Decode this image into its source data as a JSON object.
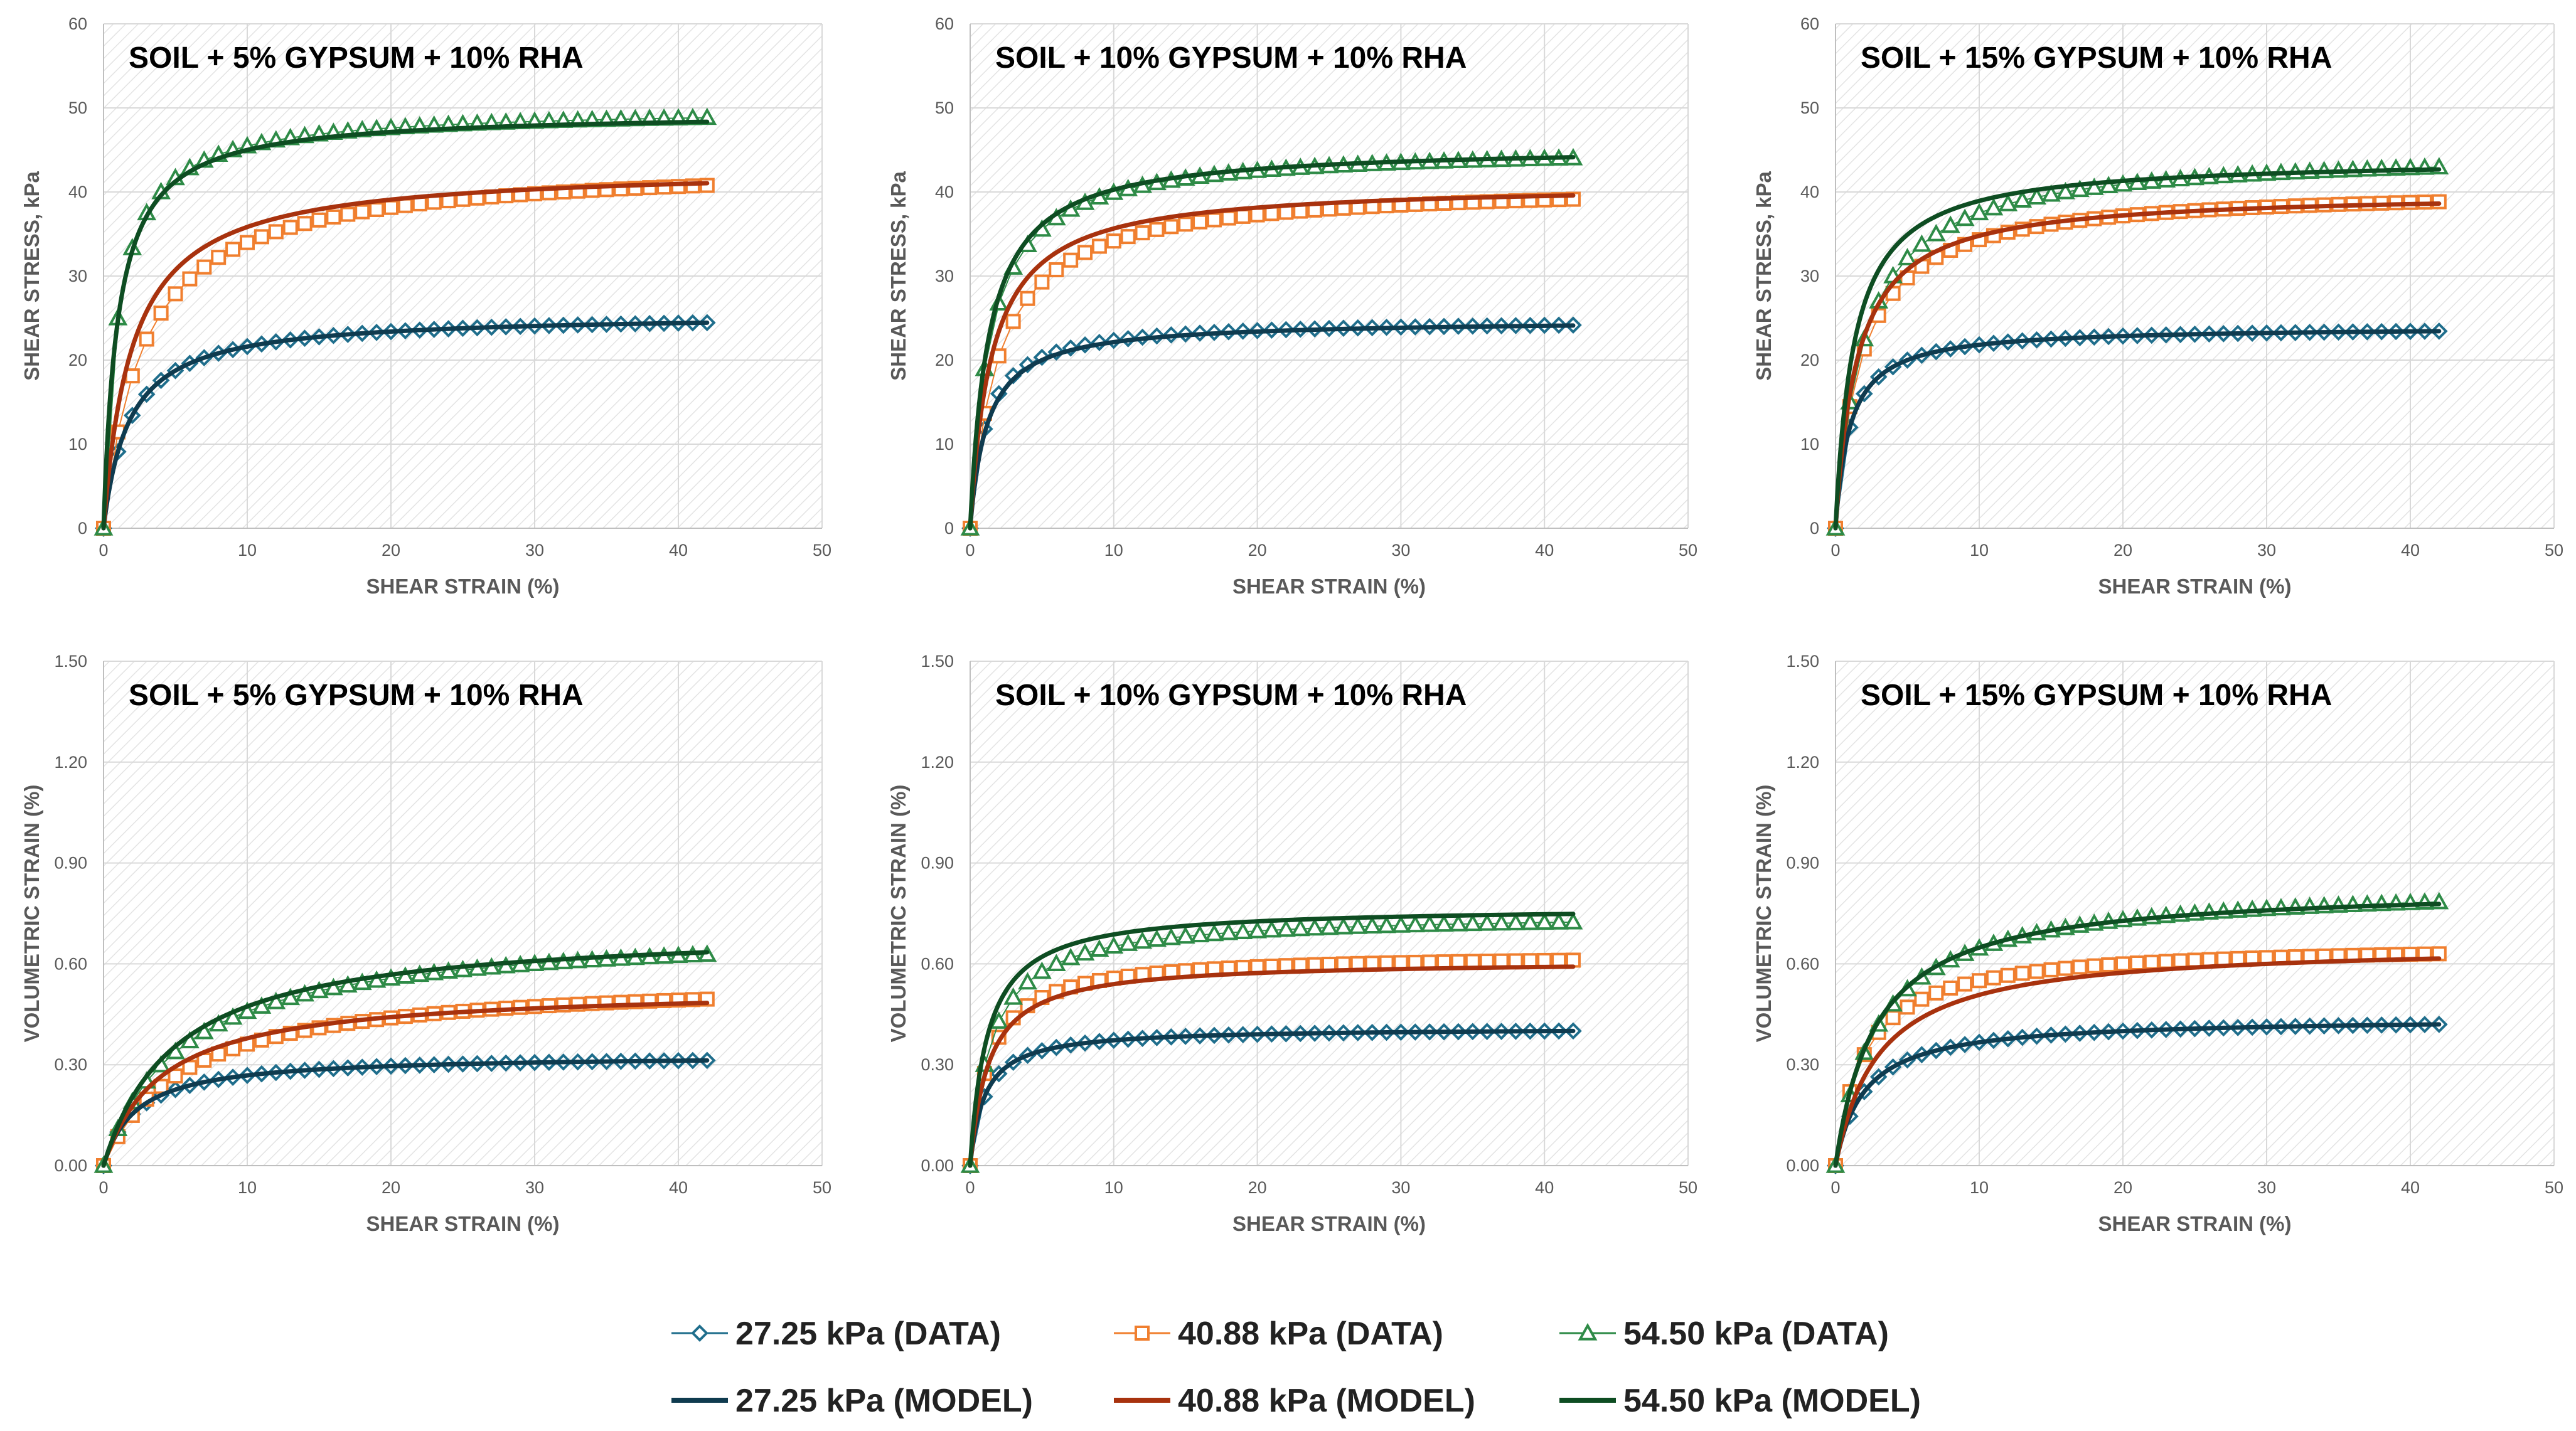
{
  "colors": {
    "d27": "#1F6E8C",
    "m27": "#0F3B4F",
    "d40": "#F07F2F",
    "m40": "#A8320E",
    "d54": "#2E8B47",
    "m54": "#0E4D22",
    "grid": "#D9D9D9",
    "hatch": "#E3E3E3"
  },
  "legend": {
    "items": [
      {
        "label": "27.25 kPa (DATA)",
        "kind": "data",
        "marker": "diamond",
        "series": "s27"
      },
      {
        "label": "40.88 kPa (DATA)",
        "kind": "data",
        "marker": "square",
        "series": "s40"
      },
      {
        "label": "54.50 kPa (DATA)",
        "kind": "data",
        "marker": "triangle",
        "series": "s54"
      },
      {
        "label": "27.25 kPa (MODEL)",
        "kind": "model",
        "series": "s27"
      },
      {
        "label": "40.88 kPa (MODEL)",
        "kind": "model",
        "series": "s40"
      },
      {
        "label": "54.50 kPa (MODEL)",
        "kind": "model",
        "series": "s54"
      }
    ]
  },
  "chart_data": [
    {
      "type": "line",
      "title": "SOIL + 5% GYPSUM + 10% RHA",
      "xlabel": "SHEAR STRAIN (%)",
      "ylabel": "SHEAR STRESS, kPa",
      "xlim": [
        0,
        50
      ],
      "ylim": [
        0,
        60
      ],
      "xticks": [
        "0",
        "10",
        "20",
        "30",
        "40",
        "50"
      ],
      "yticks": [
        "0",
        "10",
        "20",
        "30",
        "40",
        "50",
        "60"
      ],
      "series": [
        {
          "name": "27.25 kPa (DATA)",
          "key": "s27",
          "kind": "data",
          "asymptote": 25.5,
          "half_strain": 1.8
        },
        {
          "name": "40.88 kPa (DATA)",
          "key": "s40",
          "kind": "data",
          "asymptote": 43.5,
          "half_strain": 2.8
        },
        {
          "name": "54.50 kPa (DATA)",
          "key": "s54",
          "kind": "data",
          "asymptote": 50,
          "half_strain": 1.0
        },
        {
          "name": "27.25 kPa (MODEL)",
          "key": "s27",
          "kind": "model",
          "asymptote": 25.5,
          "half_strain": 1.8
        },
        {
          "name": "40.88 kPa (MODEL)",
          "key": "s40",
          "kind": "model",
          "asymptote": 43,
          "half_strain": 2.0
        },
        {
          "name": "54.50 kPa (MODEL)",
          "key": "s54",
          "kind": "model",
          "asymptote": 49.5,
          "half_strain": 1.0
        }
      ]
    },
    {
      "type": "line",
      "title": "SOIL + 10% GYPSUM + 10% RHA",
      "xlabel": "SHEAR STRAIN (%)",
      "ylabel": "SHEAR STRESS, kPa",
      "xlim": [
        0,
        50
      ],
      "ylim": [
        0,
        60
      ],
      "xticks": [
        "0",
        "10",
        "20",
        "30",
        "40",
        "50"
      ],
      "yticks": [
        "0",
        "10",
        "20",
        "30",
        "40",
        "50",
        "60"
      ],
      "series": [
        {
          "name": "27.25 kPa (DATA)",
          "key": "s27",
          "kind": "data",
          "asymptote": 24.8,
          "half_strain": 1.1
        },
        {
          "name": "40.88 kPa (DATA)",
          "key": "s40",
          "kind": "data",
          "asymptote": 41,
          "half_strain": 2.0
        },
        {
          "name": "54.50 kPa (DATA)",
          "key": "s54",
          "kind": "data",
          "asymptote": 45.5,
          "half_strain": 1.4
        },
        {
          "name": "27.25 kPa (MODEL)",
          "key": "s27",
          "kind": "model",
          "asymptote": 24.8,
          "half_strain": 1.2
        },
        {
          "name": "40.88 kPa (MODEL)",
          "key": "s40",
          "kind": "model",
          "asymptote": 41,
          "half_strain": 1.5
        },
        {
          "name": "54.50 kPa (MODEL)",
          "key": "s54",
          "kind": "model",
          "asymptote": 45.5,
          "half_strain": 1.3
        }
      ]
    },
    {
      "type": "line",
      "title": "SOIL + 15% GYPSUM + 10% RHA",
      "xlabel": "SHEAR STRAIN (%)",
      "ylabel": "SHEAR STRESS, kPa",
      "xlim": [
        0,
        50
      ],
      "ylim": [
        0,
        60
      ],
      "xticks": [
        "0",
        "10",
        "20",
        "30",
        "40",
        "50"
      ],
      "yticks": [
        "0",
        "10",
        "20",
        "30",
        "40",
        "50",
        "60"
      ],
      "series": [
        {
          "name": "27.25 kPa (DATA)",
          "key": "s27",
          "kind": "data",
          "asymptote": 24,
          "half_strain": 1.0
        },
        {
          "name": "40.88 kPa (DATA)",
          "key": "s40",
          "kind": "data",
          "asymptote": 40.5,
          "half_strain": 1.8
        },
        {
          "name": "54.50 kPa (DATA)",
          "key": "s54",
          "kind": "data",
          "asymptote": 45,
          "half_strain": 2.0
        },
        {
          "name": "27.25 kPa (MODEL)",
          "key": "s27",
          "kind": "model",
          "asymptote": 24,
          "half_strain": 1.0
        },
        {
          "name": "40.88 kPa (MODEL)",
          "key": "s40",
          "kind": "model",
          "asymptote": 40,
          "half_strain": 1.5
        },
        {
          "name": "54.50 kPa (MODEL)",
          "key": "s54",
          "kind": "model",
          "asymptote": 44,
          "half_strain": 1.3
        }
      ]
    },
    {
      "type": "line",
      "title": "SOIL + 5% GYPSUM + 10% RHA",
      "xlabel": "SHEAR STRAIN (%)",
      "ylabel": "VOLUMETRIC STRAIN (%)",
      "xlim": [
        0,
        50
      ],
      "ylim": [
        0,
        1.5
      ],
      "xticks": [
        "0",
        "10",
        "20",
        "30",
        "40",
        "50"
      ],
      "yticks": [
        "0.00",
        "0.30",
        "0.60",
        "0.90",
        "1.20",
        "1.50"
      ],
      "series": [
        {
          "name": "27.25 kPa (DATA)",
          "key": "s27",
          "kind": "data",
          "asymptote": 0.33,
          "half_strain": 2.3
        },
        {
          "name": "40.88 kPa (DATA)",
          "key": "s40",
          "kind": "data",
          "asymptote": 0.56,
          "half_strain": 5.5
        },
        {
          "name": "54.50 kPa (DATA)",
          "key": "s54",
          "kind": "data",
          "asymptote": 0.71,
          "half_strain": 5.5
        },
        {
          "name": "27.25 kPa (MODEL)",
          "key": "s27",
          "kind": "model",
          "asymptote": 0.33,
          "half_strain": 2.3
        },
        {
          "name": "40.88 kPa (MODEL)",
          "key": "s40",
          "kind": "model",
          "asymptote": 0.53,
          "half_strain": 4.0
        },
        {
          "name": "54.50 kPa (MODEL)",
          "key": "s54",
          "kind": "model",
          "asymptote": 0.71,
          "half_strain": 5.0
        }
      ]
    },
    {
      "type": "line",
      "title": "SOIL + 10% GYPSUM + 10% RHA",
      "xlabel": "SHEAR STRAIN (%)",
      "ylabel": "VOLUMETRIC STRAIN (%)",
      "xlim": [
        0,
        50
      ],
      "ylim": [
        0,
        1.5
      ],
      "xticks": [
        "0",
        "10",
        "20",
        "30",
        "40",
        "50"
      ],
      "yticks": [
        "0.00",
        "0.30",
        "0.60",
        "0.90",
        "1.20",
        "1.50"
      ],
      "series": [
        {
          "name": "27.25 kPa (DATA)",
          "key": "s27",
          "kind": "data",
          "asymptote": 0.41,
          "half_strain": 1.0
        },
        {
          "name": "40.88 kPa (DATA)",
          "key": "s40",
          "kind": "data",
          "asymptote": 0.63,
          "half_strain": 1.3
        },
        {
          "name": "54.50 kPa (DATA)",
          "key": "s54",
          "kind": "data",
          "asymptote": 0.75,
          "half_strain": 1.5
        },
        {
          "name": "27.25 kPa (MODEL)",
          "key": "s27",
          "kind": "model",
          "asymptote": 0.41,
          "half_strain": 1.0
        },
        {
          "name": "40.88 kPa (MODEL)",
          "key": "s40",
          "kind": "model",
          "asymptote": 0.61,
          "half_strain": 1.3
        },
        {
          "name": "54.50 kPa (MODEL)",
          "key": "s54",
          "kind": "model",
          "asymptote": 0.77,
          "half_strain": 1.2
        }
      ]
    },
    {
      "type": "line",
      "title": "SOIL + 15% GYPSUM + 10% RHA",
      "xlabel": "SHEAR STRAIN (%)",
      "ylabel": "VOLUMETRIC STRAIN (%)",
      "xlim": [
        0,
        50
      ],
      "ylim": [
        0,
        1.5
      ],
      "xticks": [
        "0",
        "10",
        "20",
        "30",
        "40",
        "50"
      ],
      "yticks": [
        "0.00",
        "0.30",
        "0.60",
        "0.90",
        "1.20",
        "1.50"
      ],
      "series": [
        {
          "name": "27.25 kPa (DATA)",
          "key": "s27",
          "kind": "data",
          "asymptote": 0.44,
          "half_strain": 2.0
        },
        {
          "name": "40.88 kPa (DATA)",
          "key": "s40",
          "kind": "data",
          "asymptote": 0.66,
          "half_strain": 2.0
        },
        {
          "name": "54.50 kPa (DATA)",
          "key": "s54",
          "kind": "data",
          "asymptote": 0.84,
          "half_strain": 3.0
        },
        {
          "name": "27.25 kPa (MODEL)",
          "key": "s27",
          "kind": "model",
          "asymptote": 0.44,
          "half_strain": 2.0
        },
        {
          "name": "40.88 kPa (MODEL)",
          "key": "s40",
          "kind": "model",
          "asymptote": 0.66,
          "half_strain": 3.0
        },
        {
          "name": "54.50 kPa (MODEL)",
          "key": "s54",
          "kind": "model",
          "asymptote": 0.83,
          "half_strain": 2.8
        }
      ]
    }
  ]
}
